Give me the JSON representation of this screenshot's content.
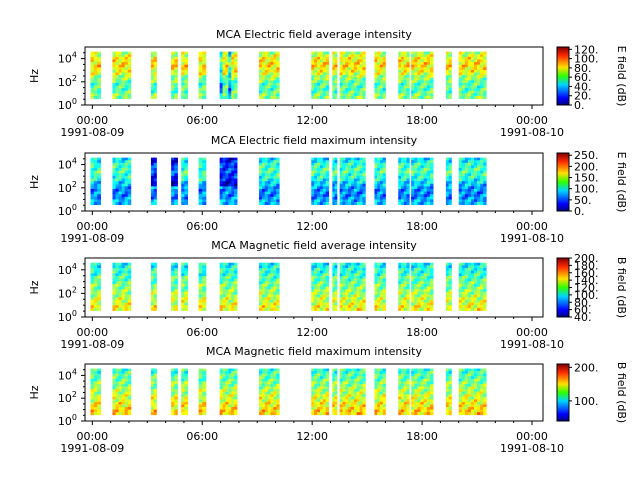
{
  "chart_data": [
    {
      "type": "heatmap",
      "title": "MCA  Electric field average intensity",
      "ylabel": "Hz",
      "colorbar_label": "E field (dB)",
      "colorbar_ticks": [
        "0.",
        "20.",
        "40.",
        "60.",
        "80.",
        "100.",
        "120."
      ],
      "clim": [
        0,
        125
      ],
      "y_ticks": [
        "10^0",
        "10^2",
        "10^4"
      ],
      "y_scale": "log",
      "dominant_level": 0.55,
      "x_ticks": [
        "00:00",
        "06:00",
        "12:00",
        "18:00",
        "00:00"
      ],
      "x_tick_dates": [
        "1991-08-09",
        "",
        "",
        "",
        "1991-08-10"
      ]
    },
    {
      "type": "heatmap",
      "title": "MCA  Electric field maximum intensity",
      "ylabel": "Hz",
      "colorbar_label": "E field (dB)",
      "colorbar_ticks": [
        "0.",
        "50.",
        "100.",
        "150.",
        "200.",
        "250."
      ],
      "clim": [
        0,
        260
      ],
      "y_ticks": [
        "10^0",
        "10^2",
        "10^4"
      ],
      "y_scale": "log",
      "dominant_level": 0.35,
      "x_ticks": [
        "00:00",
        "06:00",
        "12:00",
        "18:00",
        "00:00"
      ],
      "x_tick_dates": [
        "1991-08-09",
        "",
        "",
        "",
        "1991-08-10"
      ]
    },
    {
      "type": "heatmap",
      "title": "MCA  Magnetic field average intensity",
      "ylabel": "Hz",
      "colorbar_label": "B field (dB)",
      "colorbar_ticks": [
        "40.",
        "60.",
        "80.",
        "100.",
        "120.",
        "140.",
        "160.",
        "180.",
        "200."
      ],
      "clim": [
        40,
        200
      ],
      "y_ticks": [
        "10^0",
        "10^2",
        "10^4"
      ],
      "y_scale": "log",
      "dominant_level": 0.45,
      "x_ticks": [
        "00:00",
        "06:00",
        "12:00",
        "18:00",
        "00:00"
      ],
      "x_tick_dates": [
        "1991-08-09",
        "",
        "",
        "",
        "1991-08-10"
      ]
    },
    {
      "type": "heatmap",
      "title": "MCA  Magnetic field maximum intensity",
      "ylabel": "Hz",
      "colorbar_label": "B field (dB)",
      "colorbar_ticks": [
        "100.",
        "200."
      ],
      "clim": [
        40,
        210
      ],
      "y_ticks": [
        "10^0",
        "10^2",
        "10^4"
      ],
      "y_scale": "log",
      "dominant_level": 0.5,
      "x_ticks": [
        "00:00",
        "06:00",
        "12:00",
        "18:00",
        "00:00"
      ],
      "x_tick_dates": [
        "1991-08-09",
        "",
        "",
        "",
        "1991-08-10"
      ]
    }
  ],
  "data_segments_hours": [
    [
      0.0,
      0.55
    ],
    [
      1.2,
      2.2
    ],
    [
      3.3,
      3.6
    ],
    [
      4.4,
      4.75
    ],
    [
      4.95,
      5.3
    ],
    [
      5.9,
      6.3
    ],
    [
      7.05,
      8.0
    ],
    [
      9.2,
      10.3
    ],
    [
      12.05,
      13.0
    ],
    [
      13.2,
      13.45
    ],
    [
      13.6,
      15.0
    ],
    [
      15.5,
      16.1
    ],
    [
      16.8,
      17.4
    ],
    [
      17.5,
      18.7
    ],
    [
      19.4,
      19.7
    ],
    [
      20.1,
      21.6
    ]
  ]
}
